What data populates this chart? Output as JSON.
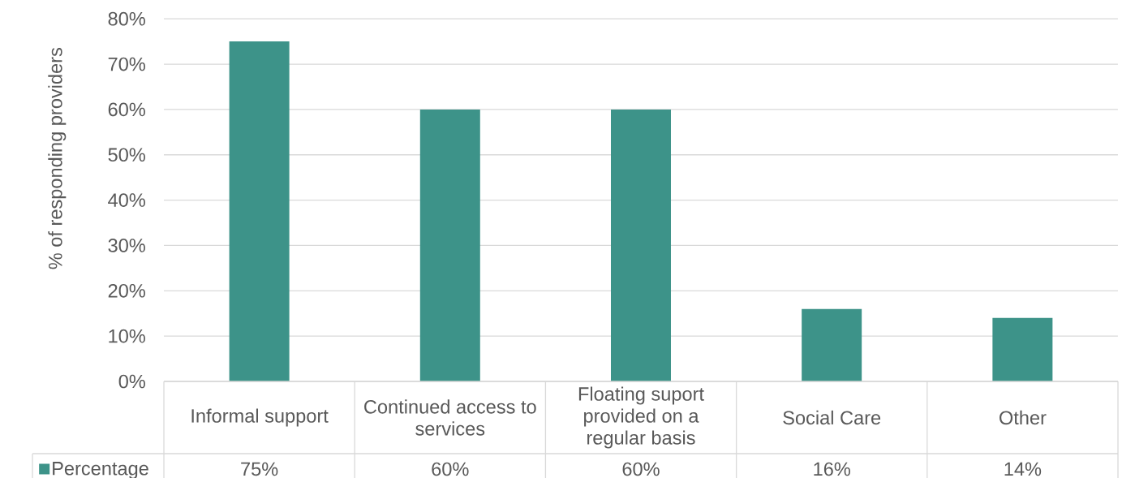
{
  "chart_data": {
    "type": "bar",
    "ylabel": "% of responding providers",
    "categories": [
      "Informal support",
      "Continued access to services",
      "Floating suport provided on a regular basis",
      "Social Care",
      "Other"
    ],
    "series": [
      {
        "name": "Percentage",
        "color": "#3d9389",
        "values": [
          75,
          60,
          60,
          16,
          14
        ],
        "value_labels": [
          "75%",
          "60%",
          "60%",
          "16%",
          "14%"
        ]
      }
    ],
    "ylim": [
      0,
      80
    ],
    "yticks": [
      {
        "value": 0,
        "label": "0%"
      },
      {
        "value": 10,
        "label": "10%"
      },
      {
        "value": 20,
        "label": "20%"
      },
      {
        "value": 30,
        "label": "30%"
      },
      {
        "value": 40,
        "label": "40%"
      },
      {
        "value": 50,
        "label": "50%"
      },
      {
        "value": 60,
        "label": "60%"
      },
      {
        "value": 70,
        "label": "70%"
      },
      {
        "value": 80,
        "label": "80%"
      }
    ],
    "grid": "y",
    "legend": "bottom left"
  }
}
